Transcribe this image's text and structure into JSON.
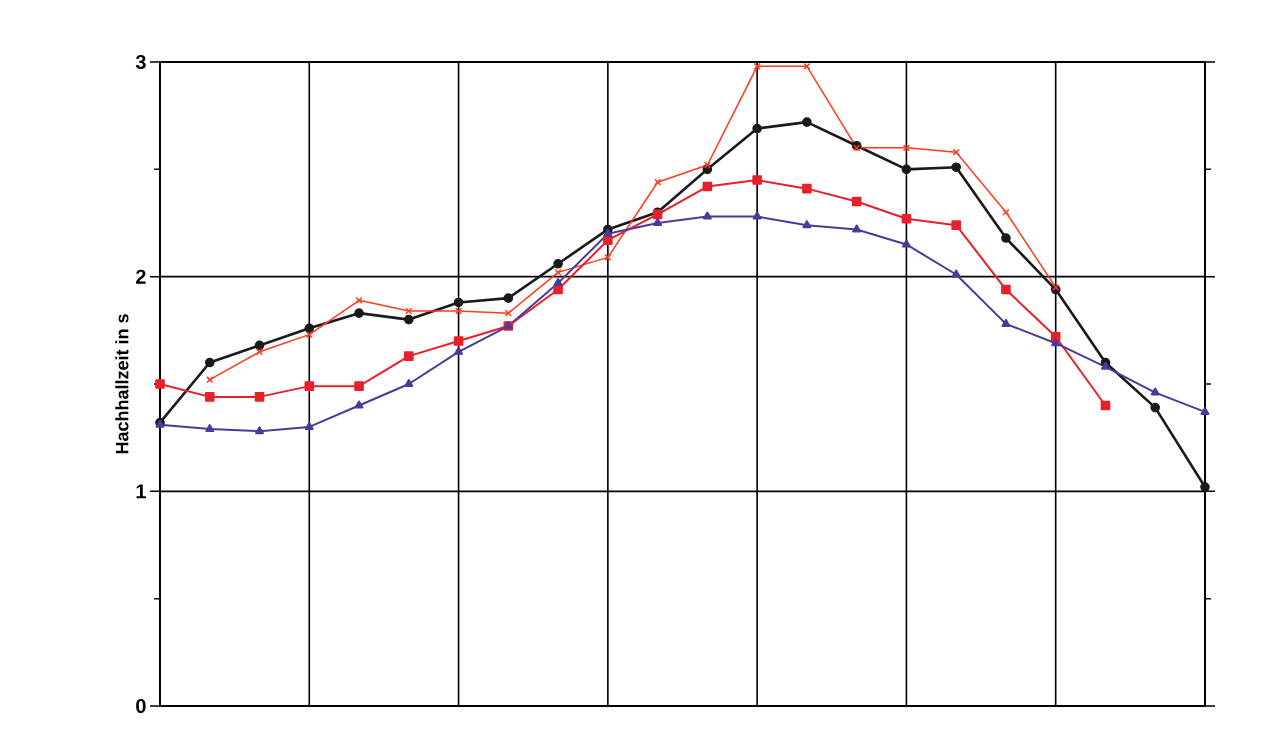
{
  "chart_data": {
    "type": "line",
    "ylabel": "Hachhallzeit in s",
    "categories": [
      null,
      null,
      null,
      null,
      null,
      null,
      null,
      null,
      null,
      null,
      null,
      null,
      null,
      null,
      null,
      null,
      null,
      null,
      null,
      null,
      null,
      null
    ],
    "ylim": [
      0,
      3
    ],
    "yticks": [
      0,
      {
        "value": 0.5,
        "label": null
      },
      1,
      {
        "value": 1.5,
        "label": null
      },
      2,
      {
        "value": 2.5,
        "label": null
      },
      3
    ],
    "grid": true,
    "tick_labels": "y",
    "line_style": "solid",
    "series": [
      {
        "color": "#1a1a1a",
        "marker": "circle",
        "values": [
          1.32,
          1.6,
          1.68,
          1.76,
          1.83,
          1.8,
          1.88,
          1.9,
          2.06,
          2.22,
          2.3,
          2.5,
          2.69,
          2.72,
          2.61,
          2.5,
          2.51,
          2.18,
          1.94,
          1.6,
          1.39,
          1.02
        ]
      },
      {
        "color": "#ff3b1f",
        "marker": "cross",
        "values": [
          null,
          1.52,
          1.65,
          1.73,
          1.89,
          1.84,
          1.84,
          1.83,
          2.02,
          2.09,
          2.44,
          2.52,
          2.98,
          2.98,
          2.6,
          2.6,
          2.58,
          2.3,
          1.95,
          null,
          null,
          null
        ]
      },
      {
        "color": "#e8202a",
        "marker": "square",
        "values": [
          1.5,
          1.44,
          1.44,
          1.49,
          1.49,
          1.63,
          1.7,
          1.77,
          1.94,
          2.17,
          2.29,
          2.42,
          2.45,
          2.41,
          2.35,
          2.27,
          2.24,
          1.94,
          1.72,
          1.4,
          null,
          null
        ]
      },
      {
        "color": "#4b3a9a",
        "marker": "triangle",
        "values": [
          1.31,
          1.29,
          1.28,
          1.3,
          1.4,
          1.5,
          1.65,
          1.77,
          1.97,
          2.2,
          2.25,
          2.28,
          2.28,
          2.24,
          2.22,
          2.15,
          2.01,
          1.78,
          1.69,
          1.58,
          1.46,
          1.37
        ]
      }
    ]
  }
}
